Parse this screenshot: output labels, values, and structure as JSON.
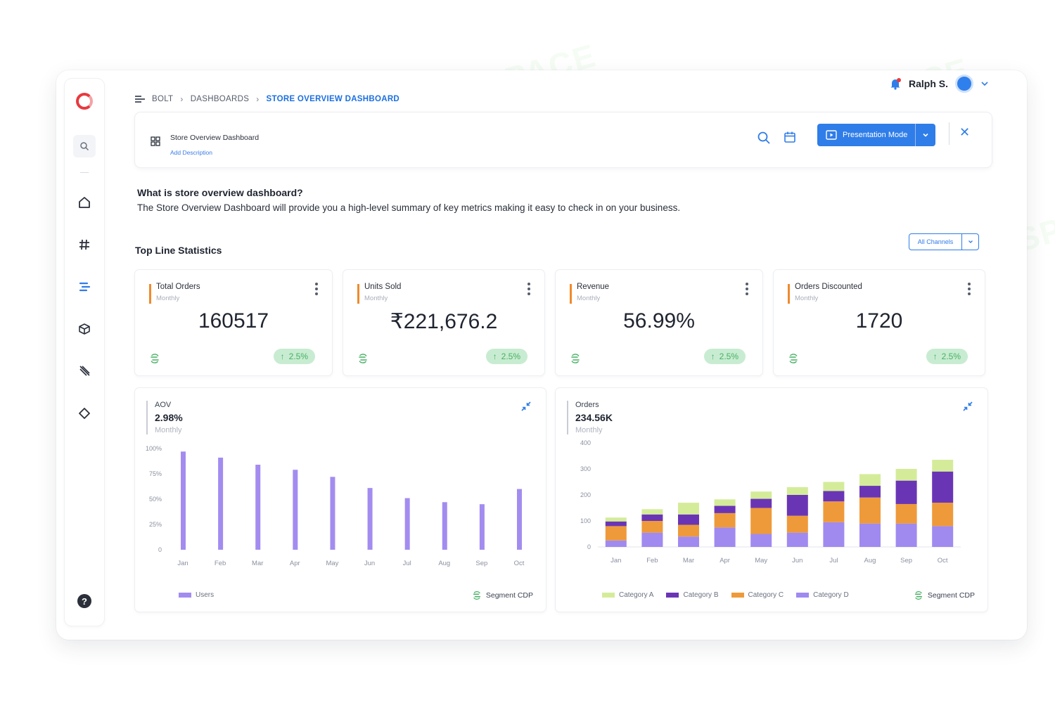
{
  "breadcrumb": {
    "items": [
      "BOLT",
      "DASHBOARDS"
    ],
    "current": "STORE OVERVIEW DASHBOARD"
  },
  "user": {
    "name": "Ralph S."
  },
  "header": {
    "title": "Store Overview Dashboard",
    "add_description": "Add Description",
    "presentation_label": "Presentation Mode"
  },
  "intro": {
    "question": "What is store overview dashboard?",
    "text": "The Store Overview Dashboard will provide you a high-level summary of key metrics making it easy to check in on your business."
  },
  "stats": {
    "title": "Top Line Statistics",
    "channel_filter": "All Channels",
    "cards": [
      {
        "label": "Total Orders",
        "period": "Monthly",
        "value": "160517",
        "delta": "2.5%"
      },
      {
        "label": "Units Sold",
        "period": "Monthly",
        "value": "₹221,676.2",
        "delta": "2.5%"
      },
      {
        "label": "Revenue",
        "period": "Monthly",
        "value": "56.99%",
        "delta": "2.5%"
      },
      {
        "label": "Orders Discounted",
        "period": "Monthly",
        "value": "1720",
        "delta": "2.5%"
      }
    ]
  },
  "aov_panel": {
    "label": "AOV",
    "value": "2.98%",
    "period": "Monthly",
    "source": "Segment CDP"
  },
  "orders_panel": {
    "label": "Orders",
    "value": "234.56K",
    "period": "Monthly",
    "source": "Segment CDP"
  },
  "chart_data": [
    {
      "type": "bar",
      "categories": [
        "Jan",
        "Feb",
        "Mar",
        "Apr",
        "May",
        "Jun",
        "Jul",
        "Aug",
        "Sep",
        "Oct"
      ],
      "series": [
        {
          "name": "Users",
          "values": [
            97,
            91,
            84,
            79,
            72,
            61,
            51,
            47,
            45,
            60
          ]
        }
      ],
      "yticks": [
        "0",
        "25%",
        "50%",
        "75%",
        "100%"
      ],
      "ylim": [
        0,
        100
      ],
      "color": "#a38cf0"
    },
    {
      "type": "bar",
      "stacked": true,
      "categories": [
        "Jan",
        "Feb",
        "Mar",
        "Apr",
        "May",
        "Jun",
        "Jul",
        "Aug",
        "Sep",
        "Oct"
      ],
      "series": [
        {
          "name": "Category D",
          "color": "#a08af0",
          "values": [
            25,
            55,
            40,
            75,
            50,
            55,
            95,
            90,
            90,
            80
          ]
        },
        {
          "name": "Category C",
          "color": "#ee9a3a",
          "values": [
            55,
            45,
            45,
            55,
            100,
            65,
            80,
            100,
            75,
            90
          ]
        },
        {
          "name": "Category B",
          "color": "#6a35b5",
          "values": [
            18,
            25,
            40,
            28,
            35,
            80,
            40,
            45,
            90,
            120
          ]
        },
        {
          "name": "Category A",
          "color": "#d4ec9a",
          "values": [
            15,
            20,
            45,
            25,
            28,
            30,
            35,
            45,
            45,
            45
          ]
        }
      ],
      "yticks": [
        "0",
        "100",
        "200",
        "300",
        "400"
      ],
      "ylim": [
        0,
        400
      ]
    }
  ]
}
